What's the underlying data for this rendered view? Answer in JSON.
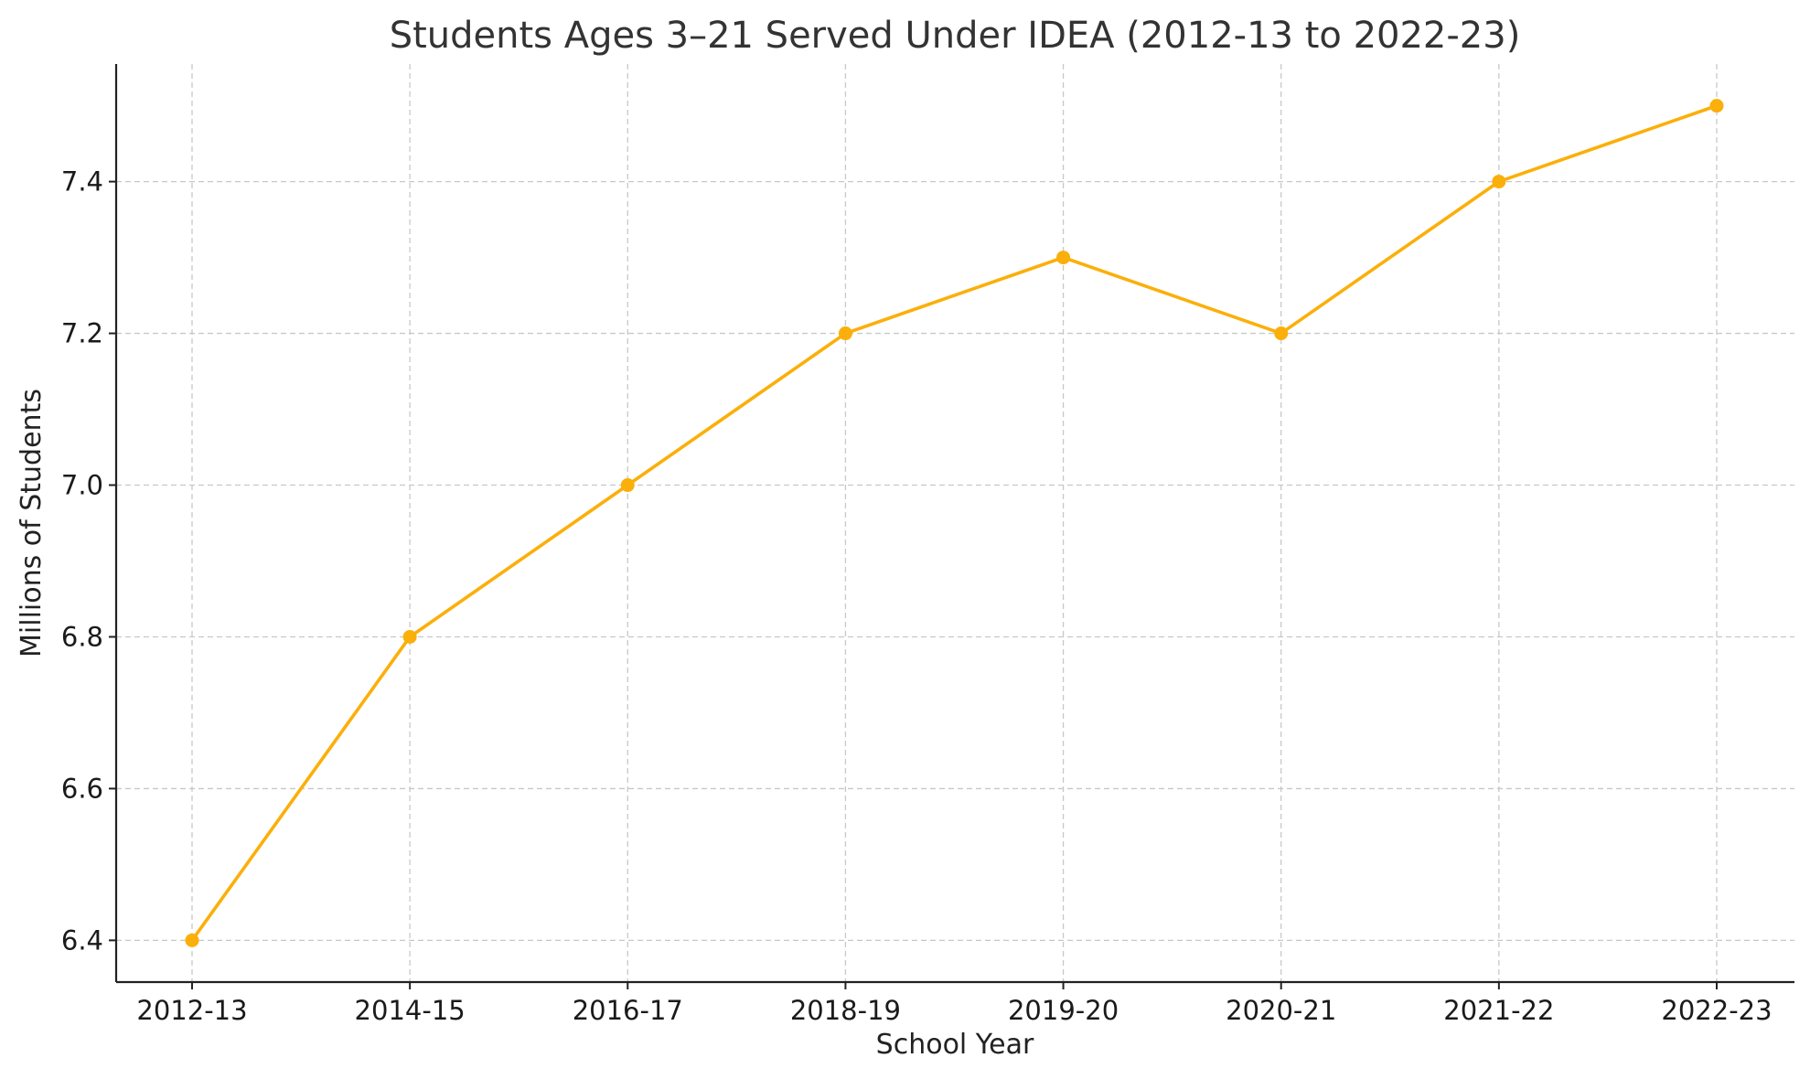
{
  "chart_data": {
    "type": "line",
    "title": "Students Ages 3–21 Served Under IDEA (2012-13 to 2022-23)",
    "xlabel": "School Year",
    "ylabel": "Millions of Students",
    "categories": [
      "2012-13",
      "2014-15",
      "2016-17",
      "2018-19",
      "2019-20",
      "2020-21",
      "2021-22",
      "2022-23"
    ],
    "series": [
      {
        "values": [
          6.4,
          6.8,
          7.0,
          7.2,
          7.3,
          7.2,
          7.4,
          7.5
        ],
        "color": "#FBAF0A"
      }
    ],
    "ylim": [
      6.345,
      7.555
    ],
    "yticks": [
      6.4,
      6.6,
      6.8,
      7.0,
      7.2,
      7.4
    ],
    "ytick_labels": [
      "6.4",
      "6.6",
      "6.8",
      "7.0",
      "7.2",
      "7.4"
    ],
    "grid": true,
    "legend": "none",
    "markers": true
  }
}
